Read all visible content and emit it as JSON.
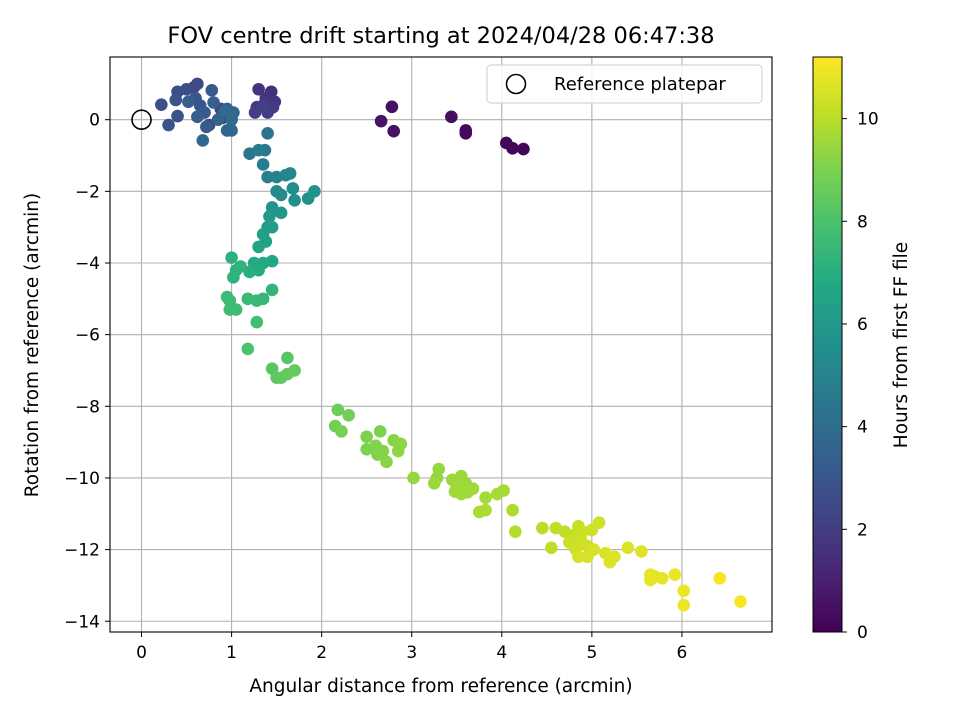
{
  "chart_data": {
    "type": "scatter",
    "title": "FOV centre drift starting at 2024/04/28 06:47:38",
    "xlabel": "Angular distance from reference (arcmin)",
    "ylabel": "Rotation from reference (arcmin)",
    "xlim": [
      -0.35,
      7.0
    ],
    "ylim": [
      -14.3,
      1.75
    ],
    "x_ticks": [
      0,
      1,
      2,
      3,
      4,
      5,
      6
    ],
    "y_ticks": [
      0,
      -2,
      -4,
      -6,
      -8,
      -10,
      -12,
      -14
    ],
    "y_tick_labels": [
      "0",
      "−2",
      "−4",
      "−6",
      "−8",
      "−10",
      "−12",
      "−14"
    ],
    "grid": true,
    "legend": {
      "position": "top-right",
      "entries": [
        "Reference platepar"
      ]
    },
    "reference_point": {
      "x": 0,
      "y": 0
    },
    "colorbar": {
      "label": "Hours from first FF file",
      "range": [
        0,
        11.2
      ],
      "ticks": [
        0,
        2,
        4,
        6,
        8,
        10
      ],
      "colormap": "viridis",
      "colors": [
        "#440154",
        "#482475",
        "#414487",
        "#355f8d",
        "#2a788e",
        "#21918c",
        "#22a884",
        "#44bf70",
        "#7ad151",
        "#bddf26",
        "#fde725"
      ]
    },
    "series": [
      {
        "points": [
          [
            4.24,
            -0.82,
            0.1
          ],
          [
            4.12,
            -0.8,
            0.1
          ],
          [
            4.05,
            -0.65,
            0.2
          ],
          [
            3.6,
            -0.38,
            0.3
          ],
          [
            3.6,
            -0.3,
            0.3
          ],
          [
            3.44,
            0.08,
            0.4
          ],
          [
            2.8,
            -0.32,
            0.5
          ],
          [
            2.78,
            0.36,
            0.5
          ],
          [
            2.66,
            -0.04,
            0.6
          ],
          [
            1.44,
            0.78,
            1.5
          ],
          [
            1.3,
            0.85,
            1.6
          ],
          [
            1.38,
            0.6,
            1.7
          ],
          [
            1.48,
            0.5,
            1.8
          ],
          [
            1.28,
            0.35,
            1.9
          ],
          [
            1.46,
            0.35,
            1.9
          ],
          [
            1.4,
            0.2,
            2.0
          ],
          [
            1.26,
            0.2,
            2.0
          ],
          [
            1.35,
            0.4,
            2.1
          ],
          [
            0.88,
            0.3,
            2.2
          ],
          [
            0.9,
            0.05,
            2.3
          ],
          [
            0.75,
            -0.15,
            2.4
          ],
          [
            0.58,
            0.9,
            2.5
          ],
          [
            0.62,
            1.0,
            2.5
          ],
          [
            0.5,
            0.85,
            2.6
          ],
          [
            0.4,
            0.78,
            2.6
          ],
          [
            0.22,
            0.42,
            2.7
          ],
          [
            0.38,
            0.55,
            2.8
          ],
          [
            0.3,
            -0.15,
            2.9
          ],
          [
            0.4,
            0.1,
            2.9
          ],
          [
            0.6,
            0.6,
            3.0
          ],
          [
            0.65,
            0.4,
            3.0
          ],
          [
            0.78,
            0.82,
            3.1
          ],
          [
            0.7,
            0.2,
            3.2
          ],
          [
            0.72,
            -0.2,
            3.2
          ],
          [
            0.52,
            0.5,
            3.3
          ],
          [
            0.62,
            0.08,
            3.3
          ],
          [
            0.8,
            0.48,
            3.4
          ],
          [
            0.95,
            0.3,
            3.4
          ],
          [
            0.85,
            0.0,
            3.5
          ],
          [
            1.0,
            0.0,
            3.5
          ],
          [
            1.02,
            0.2,
            3.6
          ],
          [
            0.95,
            -0.3,
            3.6
          ],
          [
            1.0,
            -0.3,
            3.7
          ],
          [
            0.68,
            -0.58,
            3.8
          ],
          [
            0.92,
            0.25,
            3.8
          ],
          [
            1.0,
            0.05,
            3.9
          ],
          [
            1.4,
            -0.38,
            4.2
          ],
          [
            1.2,
            -0.95,
            4.4
          ],
          [
            1.37,
            -0.85,
            4.5
          ],
          [
            1.3,
            -0.85,
            4.6
          ],
          [
            1.35,
            -1.25,
            4.7
          ],
          [
            1.4,
            -1.6,
            4.8
          ],
          [
            1.5,
            -1.6,
            4.9
          ],
          [
            1.6,
            -1.55,
            5.0
          ],
          [
            1.65,
            -1.5,
            5.1
          ],
          [
            1.5,
            -2.0,
            5.2
          ],
          [
            1.55,
            -2.1,
            5.3
          ],
          [
            1.68,
            -1.92,
            5.4
          ],
          [
            1.7,
            -2.25,
            5.5
          ],
          [
            1.85,
            -2.2,
            5.6
          ],
          [
            1.92,
            -2.0,
            5.7
          ],
          [
            1.45,
            -2.45,
            5.8
          ],
          [
            1.55,
            -2.6,
            5.9
          ],
          [
            1.42,
            -2.7,
            6.0
          ],
          [
            1.4,
            -3.0,
            6.1
          ],
          [
            1.45,
            -3.0,
            6.2
          ],
          [
            1.35,
            -3.2,
            6.3
          ],
          [
            1.38,
            -3.4,
            6.4
          ],
          [
            1.3,
            -3.55,
            6.5
          ],
          [
            1.45,
            -3.95,
            6.6
          ],
          [
            1.35,
            -4.0,
            6.7
          ],
          [
            1.25,
            -4.0,
            6.8
          ],
          [
            1.3,
            -4.2,
            6.9
          ],
          [
            1.2,
            -4.25,
            7.0
          ],
          [
            1.0,
            -3.85,
            7.1
          ],
          [
            1.05,
            -4.2,
            7.1
          ],
          [
            1.1,
            -4.1,
            7.2
          ],
          [
            1.02,
            -4.4,
            7.2
          ],
          [
            1.45,
            -4.75,
            7.3
          ],
          [
            1.35,
            -5.0,
            7.4
          ],
          [
            1.28,
            -5.05,
            7.5
          ],
          [
            1.18,
            -5.0,
            7.5
          ],
          [
            0.95,
            -4.95,
            7.6
          ],
          [
            0.98,
            -5.05,
            7.6
          ],
          [
            1.05,
            -5.3,
            7.7
          ],
          [
            0.98,
            -5.3,
            7.7
          ],
          [
            1.28,
            -5.65,
            7.8
          ],
          [
            1.18,
            -6.4,
            8.0
          ],
          [
            1.62,
            -6.65,
            8.2
          ],
          [
            1.45,
            -6.95,
            8.3
          ],
          [
            1.5,
            -7.2,
            8.4
          ],
          [
            1.55,
            -7.2,
            8.4
          ],
          [
            1.62,
            -7.1,
            8.5
          ],
          [
            1.7,
            -7.0,
            8.5
          ],
          [
            2.18,
            -8.1,
            8.7
          ],
          [
            2.3,
            -8.25,
            8.8
          ],
          [
            2.15,
            -8.55,
            8.8
          ],
          [
            2.22,
            -8.7,
            8.9
          ],
          [
            2.5,
            -8.85,
            9.0
          ],
          [
            2.65,
            -8.7,
            9.0
          ],
          [
            2.5,
            -9.2,
            9.0
          ],
          [
            2.6,
            -9.1,
            9.1
          ],
          [
            2.62,
            -9.35,
            9.1
          ],
          [
            2.68,
            -9.25,
            9.1
          ],
          [
            2.72,
            -9.55,
            9.2
          ],
          [
            2.8,
            -8.95,
            9.2
          ],
          [
            2.88,
            -9.05,
            9.3
          ],
          [
            2.85,
            -9.25,
            9.3
          ],
          [
            3.02,
            -10.0,
            9.4
          ],
          [
            3.3,
            -9.75,
            9.4
          ],
          [
            3.28,
            -10.0,
            9.4
          ],
          [
            3.25,
            -10.15,
            9.5
          ],
          [
            3.45,
            -10.05,
            9.5
          ],
          [
            3.55,
            -9.95,
            9.5
          ],
          [
            3.6,
            -10.15,
            9.5
          ],
          [
            3.5,
            -10.25,
            9.6
          ],
          [
            3.48,
            -10.38,
            9.6
          ],
          [
            3.55,
            -10.45,
            9.6
          ],
          [
            3.62,
            -10.4,
            9.6
          ],
          [
            3.68,
            -10.3,
            9.6
          ],
          [
            3.82,
            -10.55,
            9.7
          ],
          [
            3.95,
            -10.45,
            9.7
          ],
          [
            4.02,
            -10.35,
            9.7
          ],
          [
            3.75,
            -10.95,
            9.8
          ],
          [
            3.82,
            -10.9,
            9.8
          ],
          [
            4.12,
            -10.9,
            9.8
          ],
          [
            4.15,
            -11.5,
            9.9
          ],
          [
            4.45,
            -11.4,
            10.0
          ],
          [
            4.55,
            -11.95,
            10.1
          ],
          [
            4.6,
            -11.4,
            10.1
          ],
          [
            4.7,
            -11.5,
            10.1
          ],
          [
            4.78,
            -11.6,
            10.2
          ],
          [
            4.85,
            -11.35,
            10.2
          ],
          [
            4.9,
            -11.5,
            10.3
          ],
          [
            4.88,
            -11.75,
            10.3
          ],
          [
            4.75,
            -11.8,
            10.3
          ],
          [
            4.82,
            -12.0,
            10.4
          ],
          [
            4.95,
            -11.9,
            10.4
          ],
          [
            5.0,
            -11.45,
            10.4
          ],
          [
            5.08,
            -11.25,
            10.4
          ],
          [
            4.85,
            -12.2,
            10.5
          ],
          [
            4.95,
            -12.2,
            10.5
          ],
          [
            5.02,
            -12.0,
            10.5
          ],
          [
            5.15,
            -12.1,
            10.6
          ],
          [
            5.25,
            -12.2,
            10.6
          ],
          [
            5.2,
            -12.35,
            10.6
          ],
          [
            5.4,
            -11.95,
            10.6
          ],
          [
            5.55,
            -12.05,
            10.7
          ],
          [
            5.65,
            -12.7,
            10.8
          ],
          [
            5.7,
            -12.75,
            10.8
          ],
          [
            5.65,
            -12.85,
            10.8
          ],
          [
            5.78,
            -12.8,
            10.8
          ],
          [
            5.92,
            -12.7,
            10.9
          ],
          [
            6.02,
            -13.15,
            10.9
          ],
          [
            6.02,
            -13.55,
            10.9
          ],
          [
            6.42,
            -12.8,
            11.0
          ],
          [
            6.65,
            -13.45,
            11.1
          ]
        ]
      }
    ]
  }
}
